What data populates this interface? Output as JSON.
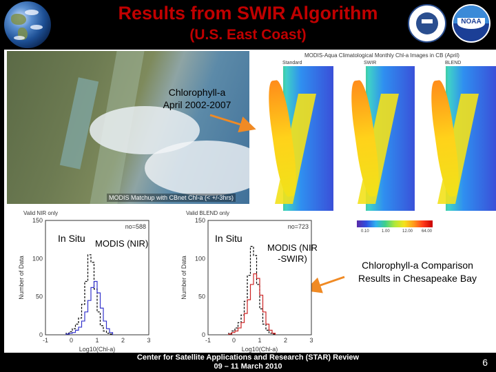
{
  "header": {
    "title": "Results from SWIR Algorithm",
    "subtitle": "(U.S. East Coast)"
  },
  "maps": {
    "panel_title": "MODIS-Aqua Climatological Monthly Chl-a Images in CB (April)",
    "labels": [
      "Standard",
      "SWIR",
      "BLEND"
    ],
    "colorbar_ticks": [
      "0.10",
      "1.00",
      "12.00",
      "64.00"
    ]
  },
  "annotations": {
    "chl_line1": "Chlorophyll-a",
    "chl_line2": "April 2002-2007",
    "matchup": "MODIS Matchup with CBnet Chl-a (< +/-3hrs)",
    "comparison_line1": "Chlorophyll-a Comparison",
    "comparison_line2": "Results in Chesapeake Bay"
  },
  "histograms": [
    {
      "title": "Valid NIR only",
      "count_label": "no=588",
      "in_situ_label": "In Situ",
      "modis_label": "MODIS (NIR)",
      "ylabel": "Number of Data",
      "xlabel": "Log10(Chl-a)",
      "yticks": [
        "0",
        "50",
        "100",
        "150"
      ],
      "xticks": [
        "-1",
        "0",
        "1",
        "2",
        "3"
      ],
      "color": "#3333cc"
    },
    {
      "title": "Valid BLEND only",
      "count_label": "no=723",
      "in_situ_label": "In Situ",
      "modis_label_a": "MODIS (NIR",
      "modis_label_b": "-SWIR)",
      "ylabel": "Number of Data",
      "xlabel": "Log10(Chl-a)",
      "yticks": [
        "0",
        "50",
        "100",
        "150"
      ],
      "xticks": [
        "-1",
        "0",
        "1",
        "2",
        "3"
      ],
      "color": "#cc2222"
    }
  ],
  "footer": {
    "line1": "Center for Satellite Applications and Research (STAR) Review",
    "line2": "09 – 11 March 2010",
    "page": "6"
  },
  "colors": {
    "title": "#c00000",
    "header_bg": "#000000",
    "arrow": "#f08a24"
  }
}
